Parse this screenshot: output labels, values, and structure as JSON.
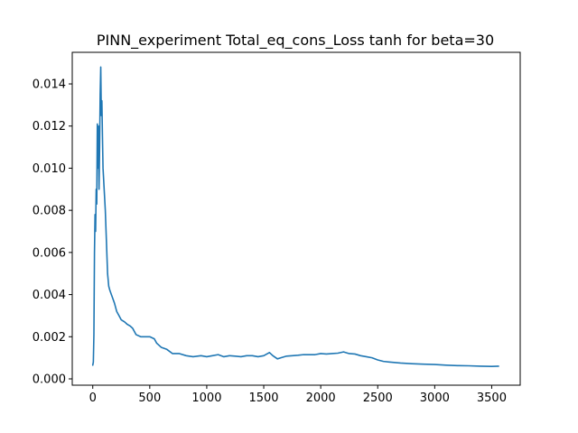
{
  "chart_data": {
    "type": "line",
    "title": "PINN_experiment Total_eq_cons_Loss tanh for beta=30",
    "xlabel": "",
    "ylabel": "",
    "xlim": [
      -180,
      3750
    ],
    "ylim": [
      -0.0003,
      0.0155
    ],
    "grid": false,
    "legend": "none",
    "x_ticks": [
      0,
      500,
      1000,
      1500,
      2000,
      2500,
      3000,
      3500
    ],
    "x_tick_labels": [
      "0",
      "500",
      "1000",
      "1500",
      "2000",
      "2500",
      "3000",
      "3500"
    ],
    "y_ticks": [
      0.0,
      0.002,
      0.004,
      0.006,
      0.008,
      0.01,
      0.012,
      0.014
    ],
    "y_tick_labels": [
      "0.000",
      "0.002",
      "0.004",
      "0.006",
      "0.008",
      "0.010",
      "0.012",
      "0.014"
    ],
    "series": [
      {
        "color": "#1f77b4",
        "points": [
          [
            0,
            0.00065
          ],
          [
            5,
            0.0008
          ],
          [
            10,
            0.0021
          ],
          [
            15,
            0.006
          ],
          [
            20,
            0.0078
          ],
          [
            25,
            0.007
          ],
          [
            30,
            0.009
          ],
          [
            35,
            0.0083
          ],
          [
            40,
            0.0121
          ],
          [
            45,
            0.01
          ],
          [
            50,
            0.012
          ],
          [
            55,
            0.009
          ],
          [
            60,
            0.011
          ],
          [
            65,
            0.0135
          ],
          [
            70,
            0.0148
          ],
          [
            75,
            0.0125
          ],
          [
            80,
            0.0132
          ],
          [
            85,
            0.0115
          ],
          [
            90,
            0.01
          ],
          [
            100,
            0.009
          ],
          [
            110,
            0.008
          ],
          [
            120,
            0.0065
          ],
          [
            130,
            0.005
          ],
          [
            140,
            0.0044
          ],
          [
            150,
            0.0042
          ],
          [
            170,
            0.0039
          ],
          [
            190,
            0.0036
          ],
          [
            210,
            0.0032
          ],
          [
            230,
            0.003
          ],
          [
            250,
            0.0028
          ],
          [
            280,
            0.0027
          ],
          [
            300,
            0.0026
          ],
          [
            330,
            0.0025
          ],
          [
            350,
            0.0024
          ],
          [
            380,
            0.0021
          ],
          [
            420,
            0.002
          ],
          [
            460,
            0.002
          ],
          [
            500,
            0.002
          ],
          [
            540,
            0.0019
          ],
          [
            560,
            0.0017
          ],
          [
            600,
            0.0015
          ],
          [
            650,
            0.0014
          ],
          [
            700,
            0.0012
          ],
          [
            760,
            0.0012
          ],
          [
            820,
            0.0011
          ],
          [
            880,
            0.00105
          ],
          [
            950,
            0.0011
          ],
          [
            1000,
            0.00105
          ],
          [
            1050,
            0.0011
          ],
          [
            1100,
            0.00115
          ],
          [
            1150,
            0.00105
          ],
          [
            1200,
            0.0011
          ],
          [
            1250,
            0.00108
          ],
          [
            1300,
            0.00105
          ],
          [
            1350,
            0.0011
          ],
          [
            1400,
            0.0011
          ],
          [
            1450,
            0.00105
          ],
          [
            1500,
            0.0011
          ],
          [
            1550,
            0.00125
          ],
          [
            1580,
            0.0011
          ],
          [
            1620,
            0.00095
          ],
          [
            1650,
            0.001
          ],
          [
            1700,
            0.00108
          ],
          [
            1750,
            0.0011
          ],
          [
            1800,
            0.00112
          ],
          [
            1850,
            0.00115
          ],
          [
            1900,
            0.00115
          ],
          [
            1950,
            0.00115
          ],
          [
            2000,
            0.0012
          ],
          [
            2050,
            0.00118
          ],
          [
            2100,
            0.0012
          ],
          [
            2150,
            0.00122
          ],
          [
            2200,
            0.00128
          ],
          [
            2250,
            0.0012
          ],
          [
            2300,
            0.00118
          ],
          [
            2350,
            0.0011
          ],
          [
            2400,
            0.00105
          ],
          [
            2450,
            0.001
          ],
          [
            2500,
            0.0009
          ],
          [
            2550,
            0.00083
          ],
          [
            2600,
            0.0008
          ],
          [
            2700,
            0.00075
          ],
          [
            2800,
            0.00072
          ],
          [
            2900,
            0.0007
          ],
          [
            3000,
            0.00068
          ],
          [
            3100,
            0.00065
          ],
          [
            3200,
            0.00063
          ],
          [
            3300,
            0.00062
          ],
          [
            3400,
            0.0006
          ],
          [
            3500,
            0.00059
          ],
          [
            3560,
            0.0006
          ]
        ]
      }
    ]
  }
}
